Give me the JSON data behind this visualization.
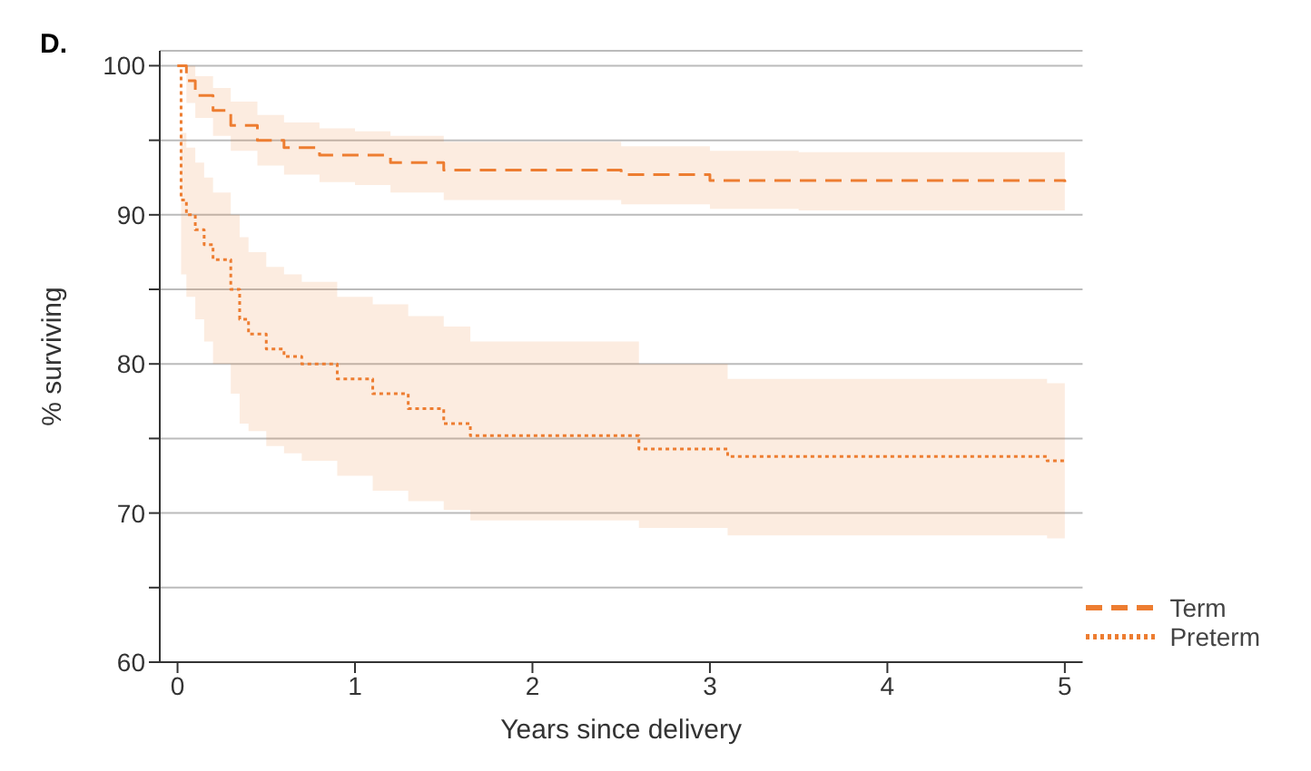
{
  "chart_data": {
    "type": "step",
    "xlabel": "Years since delivery",
    "ylabel": "% surviving",
    "annotations": [
      "D."
    ],
    "xlim": [
      -0.1,
      5.1
    ],
    "xticks": [
      0,
      1,
      2,
      3,
      4,
      5
    ],
    "ylim": [
      60,
      101
    ],
    "yticks": [
      60,
      {
        "value": 65,
        "label": null
      },
      70,
      {
        "value": 75,
        "label": null
      },
      80,
      {
        "value": 85,
        "label": null
      },
      90,
      {
        "value": 95,
        "label": null
      },
      100
    ],
    "grid": "y",
    "legend": "bottom right",
    "marker": "none",
    "series": [
      {
        "name": "Term",
        "color": "#ed7d31",
        "line_style": "dashed",
        "x": [
          0,
          0.05,
          0.1,
          0.2,
          0.3,
          0.45,
          0.6,
          0.8,
          1.0,
          1.2,
          1.5,
          2.0,
          2.5,
          3.0,
          3.5,
          5
        ],
        "values": [
          100,
          99,
          98,
          97,
          96,
          95,
          94.5,
          94,
          94,
          93.5,
          93,
          93,
          92.7,
          92.3,
          92.3,
          92.2
        ],
        "lower": [
          100,
          97.5,
          96.5,
          95.3,
          94.3,
          93.3,
          92.7,
          92.2,
          92,
          91.5,
          91,
          91,
          90.7,
          90.4,
          90.3,
          90.3
        ],
        "upper": [
          100,
          100,
          99.3,
          98.5,
          97.6,
          96.7,
          96.2,
          95.8,
          95.6,
          95.3,
          94.9,
          94.9,
          94.6,
          94.3,
          94.2,
          94.1
        ]
      },
      {
        "name": "Preterm",
        "color": "#ed7d31",
        "line_style": "dotted",
        "x": [
          0,
          0.02,
          0.05,
          0.1,
          0.15,
          0.2,
          0.3,
          0.35,
          0.4,
          0.5,
          0.6,
          0.7,
          0.9,
          1.1,
          1.3,
          1.5,
          1.65,
          2.6,
          3.1,
          4.9,
          5
        ],
        "values": [
          100,
          91,
          90,
          89,
          88,
          87,
          85,
          83,
          82,
          81,
          80.5,
          80,
          79,
          78,
          77,
          76,
          75.2,
          74.3,
          73.8,
          73.5,
          73.5
        ],
        "lower": [
          100,
          86,
          84.5,
          83,
          81.5,
          80,
          78,
          76,
          75.5,
          74.5,
          74,
          73.5,
          72.5,
          71.5,
          70.8,
          70.2,
          69.5,
          69,
          68.5,
          68.3,
          68.3
        ],
        "upper": [
          100,
          95.5,
          94.5,
          93.5,
          92.5,
          91.5,
          90,
          88.5,
          87.5,
          86.5,
          86,
          85.5,
          84.5,
          84,
          83.2,
          82.5,
          81.5,
          80,
          79,
          78.7,
          78.7
        ]
      }
    ]
  }
}
